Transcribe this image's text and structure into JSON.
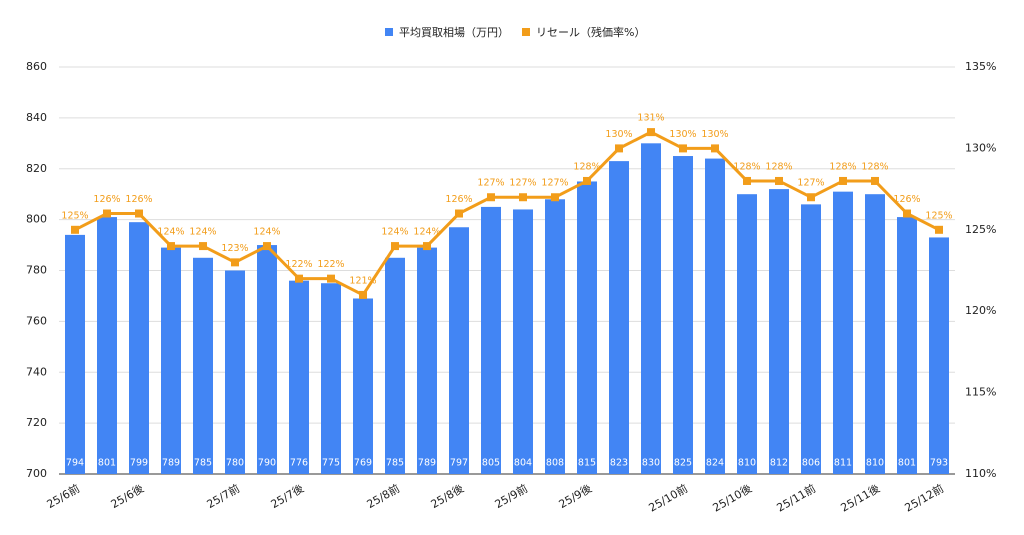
{
  "chart_data": {
    "type": "bar-line",
    "categories": [
      "25/6前",
      null,
      "25/6後",
      null,
      null,
      "25/7前",
      null,
      "25/7後",
      null,
      null,
      "25/8前",
      null,
      "25/8後",
      null,
      "25/9前",
      null,
      "25/9後",
      null,
      null,
      "25/10前",
      null,
      "25/10後",
      null,
      "25/11前",
      null,
      "25/11後",
      null,
      "25/12前"
    ],
    "series": [
      {
        "name": "平均買取相場（万円）",
        "color": "#4285f4",
        "type": "bar",
        "values": [
          794,
          801,
          799,
          789,
          785,
          780,
          790,
          776,
          775,
          769,
          785,
          789,
          797,
          805,
          804,
          808,
          815,
          823,
          830,
          825,
          824,
          810,
          812,
          806,
          811,
          810,
          801,
          793
        ]
      },
      {
        "name": "リセール（残価率%）",
        "color": "#f29d1a",
        "type": "line",
        "axis": "y2",
        "values": [
          125,
          126,
          126,
          124,
          124,
          123,
          124,
          122,
          122,
          121,
          124,
          124,
          126,
          127,
          127,
          127,
          128,
          130,
          131,
          130,
          130,
          128,
          128,
          127,
          128,
          128,
          126,
          125
        ],
        "value_labels": [
          "125%",
          "126%",
          "126%",
          "124%",
          "124%",
          "123%",
          "124%",
          "122%",
          "122%",
          "121%",
          "124%",
          "124%",
          "126%",
          "127%",
          "127%",
          "127%",
          "128%",
          "130%",
          "131%",
          "130%",
          "130%",
          "128%",
          "128%",
          "127%",
          "128%",
          "128%",
          "126%",
          "125%"
        ]
      }
    ],
    "ylim": [
      700,
      860
    ],
    "yticks": [
      700,
      720,
      740,
      760,
      780,
      800,
      820,
      840,
      860
    ],
    "y2lim": [
      110,
      135
    ],
    "y2ticks": [
      {
        "value": 110,
        "label": "110%"
      },
      {
        "value": 115,
        "label": "115%"
      },
      {
        "value": 120,
        "label": "120%"
      },
      {
        "value": 125,
        "label": "125%"
      },
      {
        "value": 130,
        "label": "130%"
      },
      {
        "value": 135,
        "label": "135%"
      }
    ],
    "grid": true,
    "legend": "top"
  }
}
